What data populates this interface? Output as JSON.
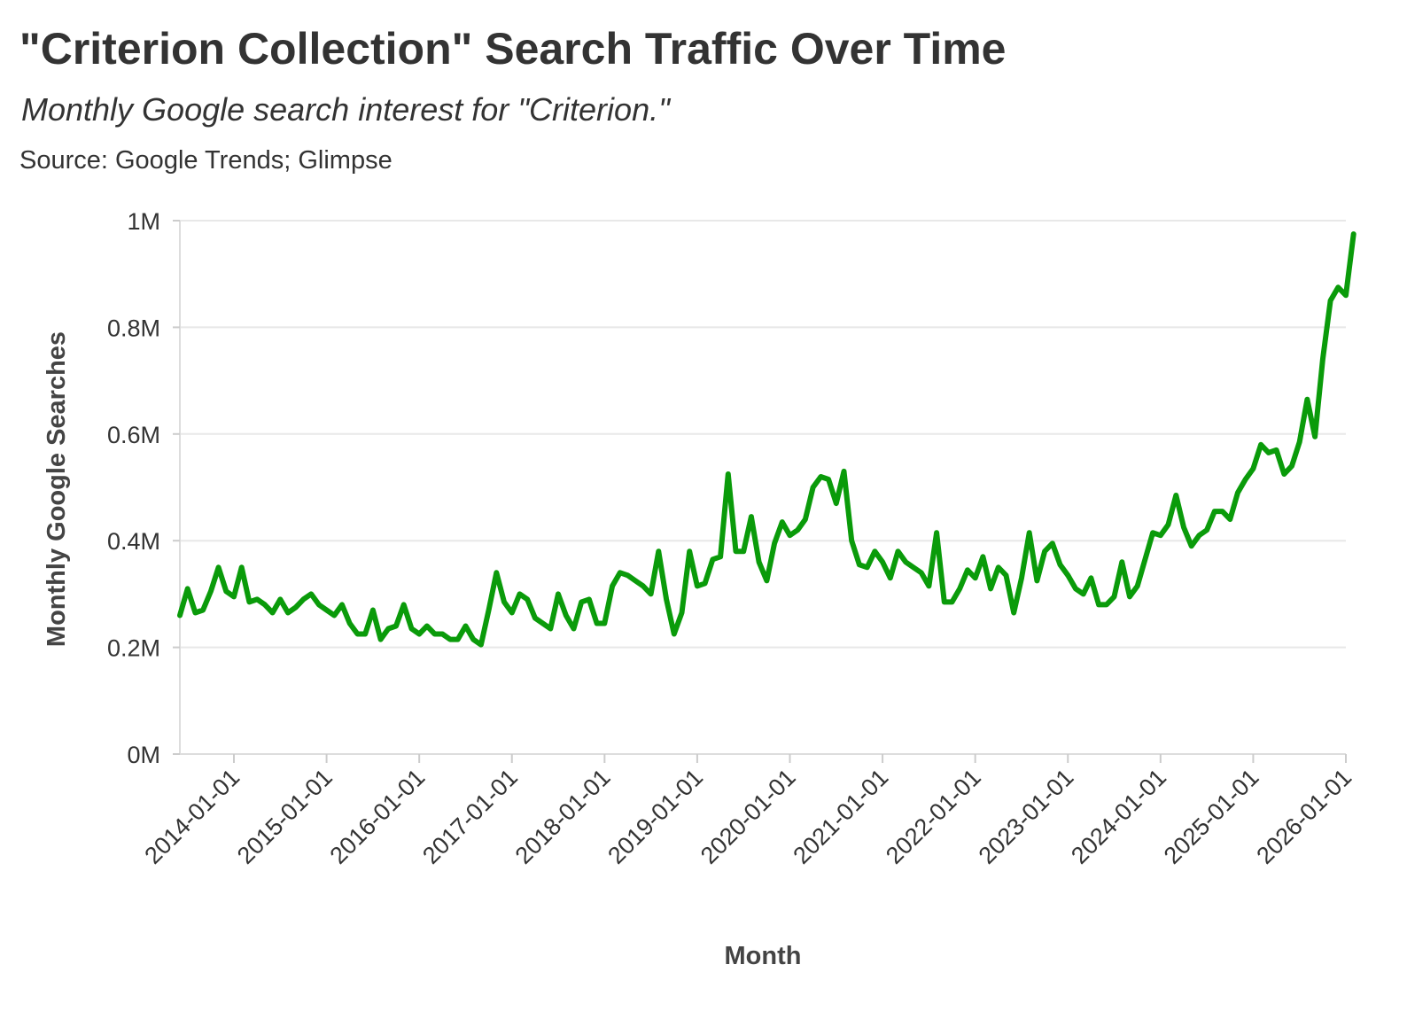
{
  "header": {
    "title": "\"Criterion Collection\" Search Traffic Over Time",
    "subtitle": "Monthly Google search interest for \"Criterion.\"",
    "source": "Source: Google Trends; Glimpse"
  },
  "colors": {
    "line": "#0a9b0a",
    "grid": "#e8e8e8",
    "text": "#333333"
  },
  "chart_data": {
    "type": "line",
    "title": "\"Criterion Collection\" Search Traffic Over Time",
    "xlabel": "Month",
    "ylabel": "Monthly Google Searches",
    "x_range": [
      "2013-06-01",
      "2026-01-01"
    ],
    "ylim": [
      0,
      1000000
    ],
    "y_ticks": [
      {
        "value": 0,
        "label": "0M"
      },
      {
        "value": 200000,
        "label": "0.2M"
      },
      {
        "value": 400000,
        "label": "0.4M"
      },
      {
        "value": 600000,
        "label": "0.6M"
      },
      {
        "value": 800000,
        "label": "0.8M"
      },
      {
        "value": 1000000,
        "label": "1M"
      }
    ],
    "x_ticks": [
      "2014-01-01",
      "2015-01-01",
      "2016-01-01",
      "2017-01-01",
      "2018-01-01",
      "2019-01-01",
      "2020-01-01",
      "2021-01-01",
      "2022-01-01",
      "2023-01-01",
      "2024-01-01",
      "2025-01-01",
      "2026-01-01"
    ],
    "grid": true,
    "series": [
      {
        "name": "Monthly Google Searches",
        "start": "2013-06",
        "values": [
          260000,
          310000,
          265000,
          270000,
          305000,
          350000,
          305000,
          295000,
          350000,
          285000,
          290000,
          280000,
          265000,
          290000,
          265000,
          275000,
          290000,
          300000,
          280000,
          270000,
          260000,
          280000,
          245000,
          225000,
          225000,
          270000,
          215000,
          235000,
          240000,
          280000,
          235000,
          225000,
          240000,
          225000,
          225000,
          215000,
          215000,
          240000,
          215000,
          205000,
          270000,
          340000,
          285000,
          265000,
          300000,
          290000,
          255000,
          245000,
          235000,
          300000,
          260000,
          235000,
          285000,
          290000,
          245000,
          245000,
          315000,
          340000,
          335000,
          325000,
          315000,
          300000,
          380000,
          290000,
          225000,
          265000,
          380000,
          315000,
          320000,
          365000,
          370000,
          525000,
          380000,
          380000,
          445000,
          360000,
          325000,
          395000,
          435000,
          410000,
          420000,
          440000,
          500000,
          520000,
          515000,
          470000,
          530000,
          400000,
          355000,
          350000,
          380000,
          360000,
          330000,
          380000,
          360000,
          350000,
          340000,
          315000,
          415000,
          285000,
          285000,
          310000,
          345000,
          330000,
          370000,
          310000,
          350000,
          335000,
          265000,
          330000,
          415000,
          325000,
          380000,
          395000,
          355000,
          335000,
          310000,
          300000,
          330000,
          280000,
          280000,
          295000,
          360000,
          295000,
          315000,
          365000,
          415000,
          410000,
          430000,
          485000,
          425000,
          390000,
          410000,
          420000,
          455000,
          455000,
          440000,
          490000,
          515000,
          535000,
          580000,
          565000,
          570000,
          525000,
          540000,
          585000,
          665000,
          595000,
          740000,
          850000,
          875000,
          860000,
          975000
        ]
      }
    ]
  }
}
